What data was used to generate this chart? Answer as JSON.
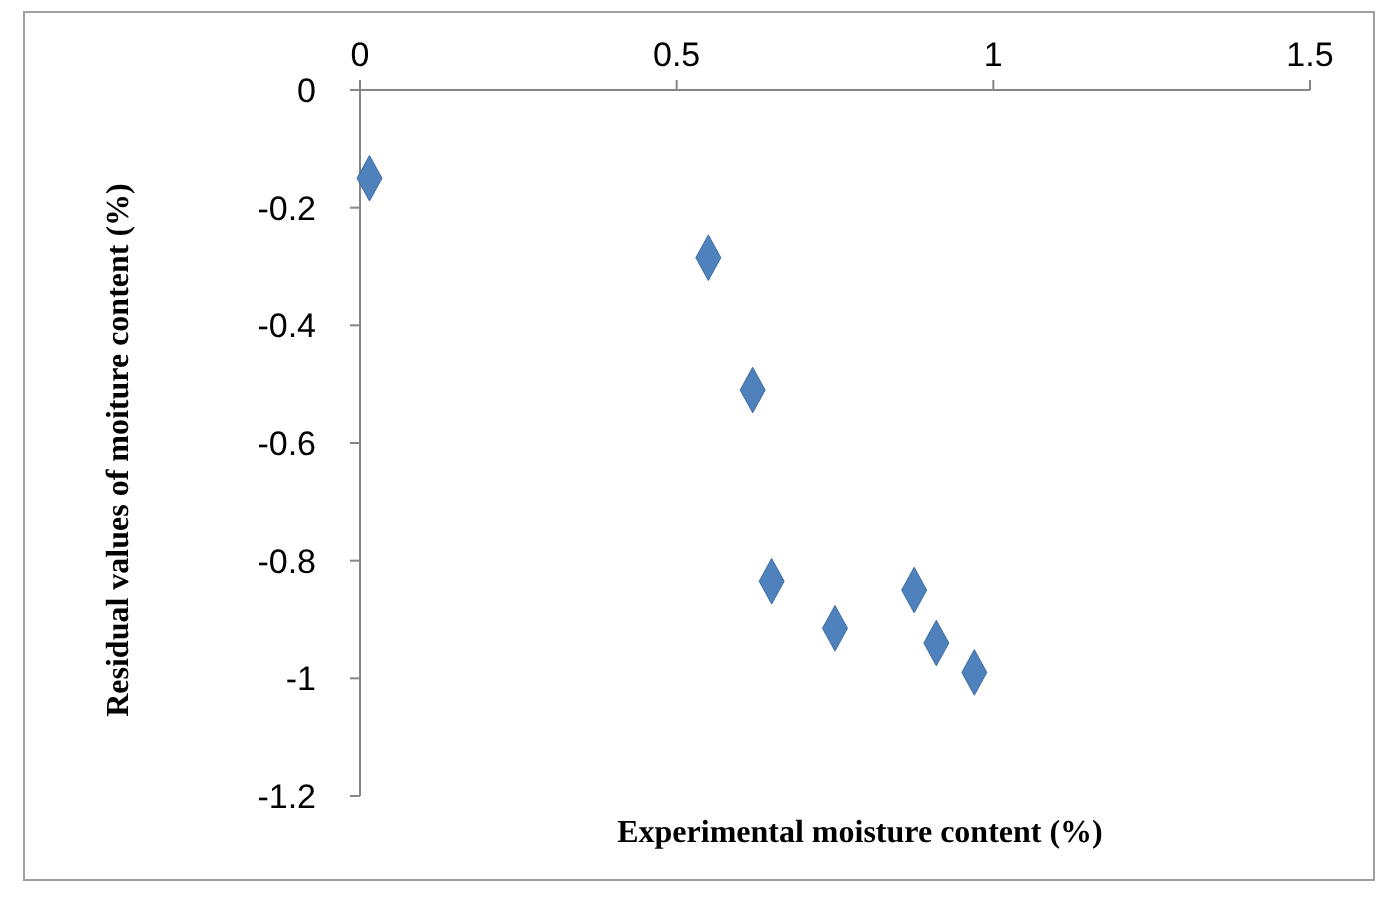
{
  "chart_data": {
    "type": "scatter",
    "xlabel": "Experimental moisture content (%)",
    "ylabel": "Residual values of moiture content (%)",
    "x": [
      0.015,
      0.55,
      0.62,
      0.65,
      0.75,
      0.875,
      0.91,
      0.97
    ],
    "series": [
      {
        "color": "#4f81bd",
        "values": [
          -0.15,
          -0.285,
          -0.51,
          -0.835,
          -0.915,
          -0.85,
          -0.94,
          -0.99
        ]
      }
    ],
    "xlim": [
      0,
      1.5
    ],
    "xticks": [
      0,
      0.5,
      1,
      1.5
    ],
    "ylim": [
      -1.2,
      0
    ],
    "yticks": [
      -1.2,
      -1,
      -0.8,
      -0.6,
      -0.4,
      -0.2,
      0
    ],
    "marker": "diamond",
    "grid": false
  }
}
